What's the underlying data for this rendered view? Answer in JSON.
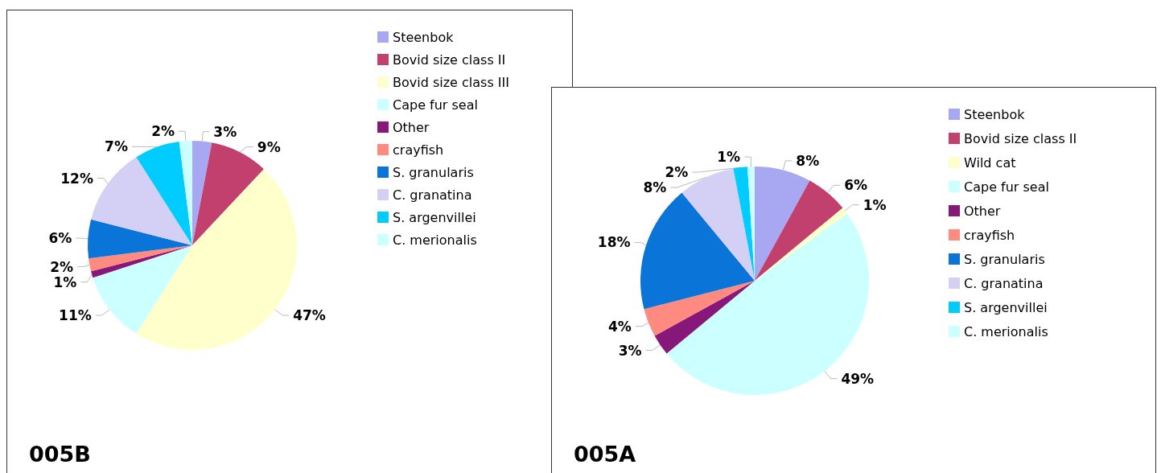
{
  "chart_data": [
    {
      "type": "pie",
      "title": "005B",
      "categories": [
        "Steenbok",
        "Bovid size class II",
        "Bovid size class III",
        "Cape fur seal",
        "Other",
        "crayfish",
        "S. granularis",
        "C. granatina",
        "S. argenvillei",
        "C. merionalis"
      ],
      "values": [
        3,
        9,
        47,
        11,
        1,
        2,
        6,
        12,
        7,
        2
      ],
      "colors": [
        "#a8a8f2",
        "#c2406e",
        "#ffffcc",
        "#ccffff",
        "#87187a",
        "#ff8a80",
        "#0a74d9",
        "#d4d0f5",
        "#00ccff",
        "#ccffff"
      ],
      "value_labels": [
        "3%",
        "9%",
        "47%",
        "11%",
        "1%",
        "2%",
        "6%",
        "12%",
        "7%",
        "2%"
      ],
      "legend": "top right"
    },
    {
      "type": "pie",
      "title": "005A",
      "categories": [
        "Steenbok",
        "Bovid size class II",
        "Wild cat",
        "Cape fur seal",
        "Other",
        "crayfish",
        "S. granularis",
        "C. granatina",
        "S. argenvillei",
        "C. merionalis"
      ],
      "values": [
        8,
        6,
        1,
        49,
        3,
        4,
        18,
        8,
        2,
        1
      ],
      "colors": [
        "#a8a8f2",
        "#c2406e",
        "#ffffcc",
        "#ccffff",
        "#87187a",
        "#ff8a80",
        "#0a74d9",
        "#d4d0f5",
        "#00ccff",
        "#ccffff"
      ],
      "value_labels": [
        "8%",
        "6%",
        "1%",
        "49%",
        "3%",
        "4%",
        "18%",
        "8%",
        "2%",
        "1%"
      ],
      "legend": "top right"
    }
  ]
}
